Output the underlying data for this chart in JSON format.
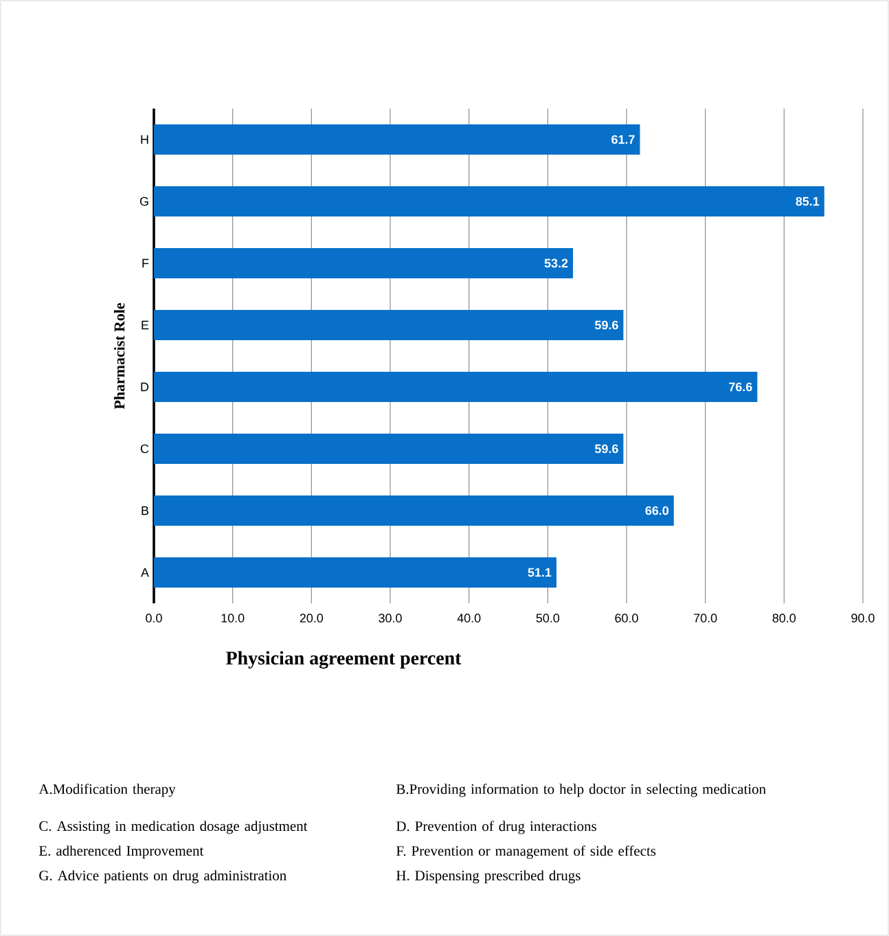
{
  "chart_data": {
    "type": "bar",
    "orientation": "horizontal",
    "xlabel": "Physician agreement percent",
    "ylabel": "Pharmacist Role",
    "categories": [
      "H",
      "G",
      "F",
      "E",
      "D",
      "C",
      "B",
      "A"
    ],
    "values": [
      61.7,
      85.1,
      53.2,
      59.6,
      76.6,
      59.6,
      66.0,
      51.1
    ],
    "value_labels": [
      "61.7",
      "85.1",
      "53.2",
      "59.6",
      "76.6",
      "59.6",
      "66.0",
      "51.1"
    ],
    "color": "#0870c8",
    "xlim": [
      0,
      90
    ],
    "xticks": [
      {
        "value": 0,
        "label": "0.0"
      },
      {
        "value": 10,
        "label": "10.0"
      },
      {
        "value": 20,
        "label": "20.0"
      },
      {
        "value": 30,
        "label": "30.0"
      },
      {
        "value": 40,
        "label": "40.0"
      },
      {
        "value": 50,
        "label": "50.0"
      },
      {
        "value": 60,
        "label": "60.0"
      },
      {
        "value": 70,
        "label": "70.0"
      },
      {
        "value": 80,
        "label": "80.0"
      },
      {
        "value": 90,
        "label": "90.0"
      }
    ],
    "grid": "x",
    "annotations": [
      "A.Modification therapy",
      "B.Providing information to help doctor in selecting medication",
      "C. Assisting in medication dosage adjustment",
      "D. Prevention of drug interactions",
      "E. adherenced  Improvement",
      "F. Prevention or management of side effects",
      "G. Advice patients on drug administration",
      "H. Dispensing prescribed drugs"
    ]
  }
}
